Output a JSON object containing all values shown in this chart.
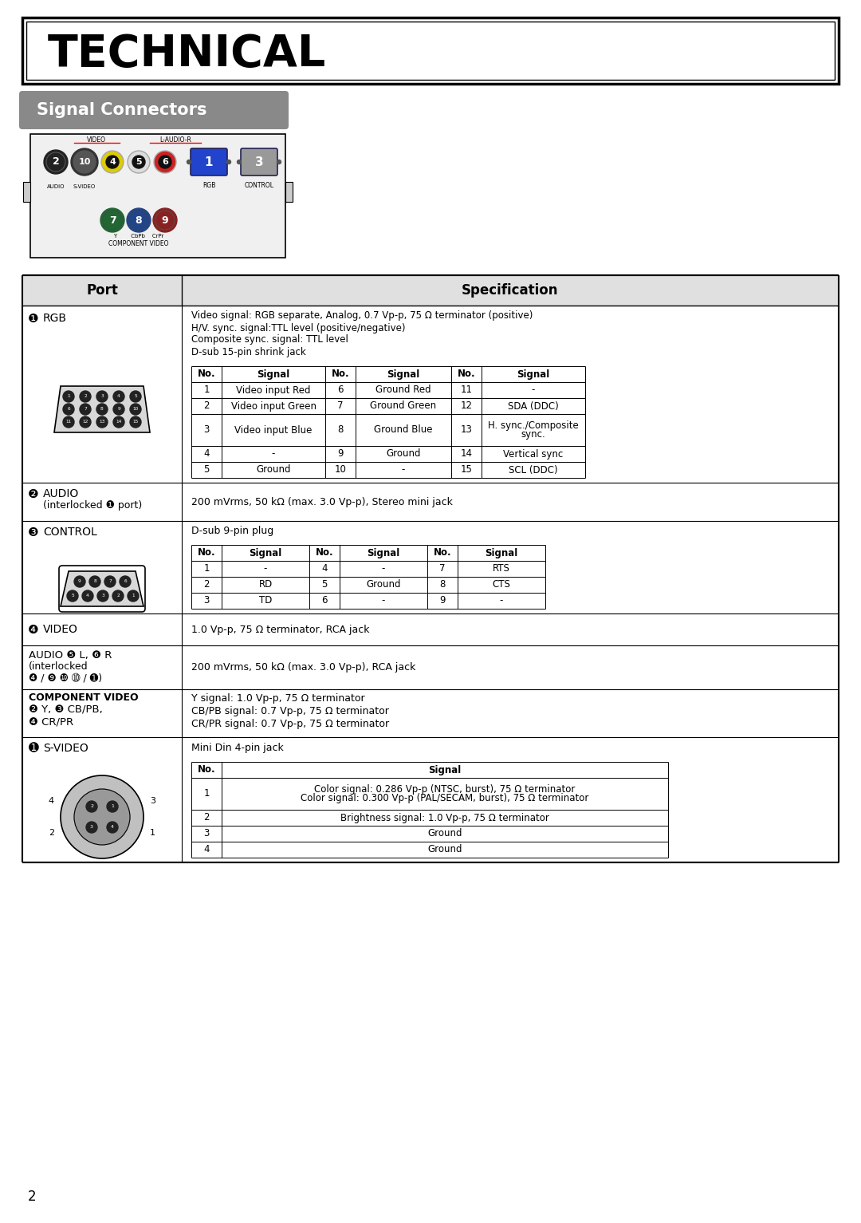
{
  "title": "TECHNICAL",
  "subtitle": "Signal Connectors",
  "background_color": "#ffffff",
  "page_number": "2",
  "rgb_spec_lines": [
    "Video signal: RGB separate, Analog, 0.7 Vp-p, 75 Ω terminator (positive)",
    "H/V. sync. signal:TTL level (positive/negative)",
    "Composite sync. signal: TTL level",
    "D-sub 15-pin shrink jack"
  ],
  "rgb_table_headers": [
    "No.",
    "Signal",
    "No.",
    "Signal",
    "No.",
    "Signal"
  ],
  "rgb_table_rows": [
    [
      "1",
      "Video input Red",
      "6",
      "Ground Red",
      "11",
      "-"
    ],
    [
      "2",
      "Video input Green",
      "7",
      "Ground Green",
      "12",
      "SDA (DDC)"
    ],
    [
      "3",
      "Video input Blue",
      "8",
      "Ground Blue",
      "13",
      "H. sync./Composite\nsync."
    ],
    [
      "4",
      "-",
      "9",
      "Ground",
      "14",
      "Vertical sync"
    ],
    [
      "5",
      "Ground",
      "10",
      "-",
      "15",
      "SCL (DDC)"
    ]
  ],
  "audio_spec": "200 mVrms, 50 kΩ (max. 3.0 Vp-p), Stereo mini jack",
  "control_spec_line": "D-sub 9-pin plug",
  "control_table_headers": [
    "No.",
    "Signal",
    "No.",
    "Signal",
    "No.",
    "Signal"
  ],
  "control_table_rows": [
    [
      "1",
      "-",
      "4",
      "-",
      "7",
      "RTS"
    ],
    [
      "2",
      "RD",
      "5",
      "Ground",
      "8",
      "CTS"
    ],
    [
      "3",
      "TD",
      "6",
      "-",
      "9",
      "-"
    ]
  ],
  "video_spec": "1.0 Vp-p, 75 Ω terminator, RCA jack",
  "audio_rca_port_line1": "AUDIO ❺ L, ❻ R",
  "audio_rca_port_line2": "(interlocked",
  "audio_rca_port_line3": "❹ / ❾ ❿ ➉ / ➊)",
  "audio_rca_spec": "200 mVrms, 50 kΩ (max. 3.0 Vp-p), RCA jack",
  "component_video_spec": [
    "Y signal: 1.0 Vp-p, 75 Ω terminator",
    "CB/PB signal: 0.7 Vp-p, 75 Ω terminator",
    "CR/PR signal: 0.7 Vp-p, 75 Ω terminator"
  ],
  "svideo_spec_line": "Mini Din 4-pin jack",
  "svideo_table_rows": [
    [
      "1",
      "Color signal: 0.286 Vp-p (NTSC, burst), 75 Ω terminator\nColor signal: 0.300 Vp-p (PAL/SECAM, burst), 75 Ω terminator"
    ],
    [
      "2",
      "Brightness signal: 1.0 Vp-p, 75 Ω terminator"
    ],
    [
      "3",
      "Ground"
    ],
    [
      "4",
      "Ground"
    ]
  ],
  "panel_video_label": "VIDEO",
  "panel_audio_label": "L-AUDIO-R",
  "panel_rgb_label": "RGB",
  "panel_ctrl_label": "CONTROL",
  "panel_svideo_label": "S-VIDEO",
  "panel_audio_jack_label": "AUDIO",
  "panel_component_label": "COMPONENT VIDEO",
  "panel_ycbcr_label": "Y        CbPb    CrPr"
}
